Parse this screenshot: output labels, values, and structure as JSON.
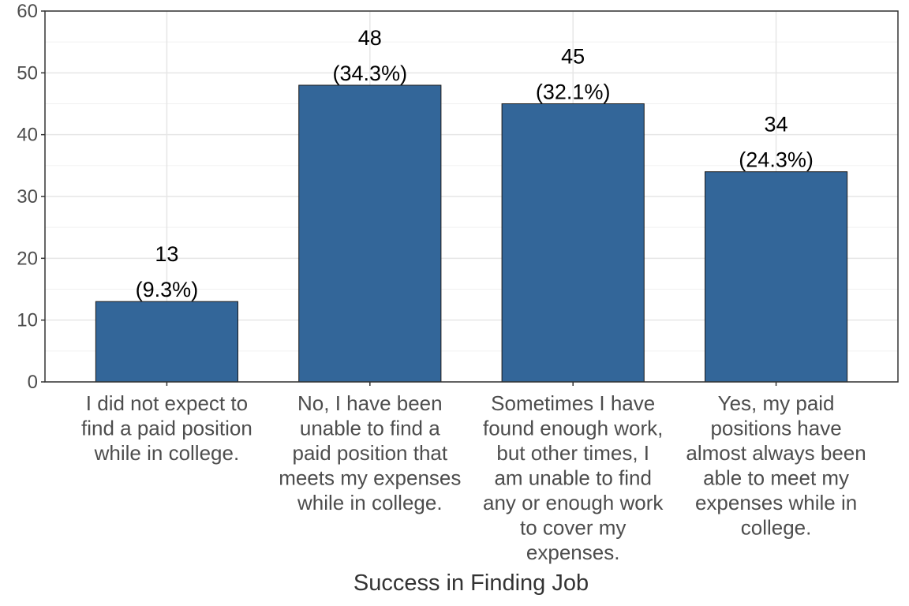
{
  "chart_data": {
    "type": "bar",
    "title": "",
    "xlabel": "Success in Finding Job",
    "ylabel": "",
    "ylim": [
      0,
      60
    ],
    "yticks": [
      0,
      10,
      20,
      30,
      40,
      50,
      60
    ],
    "grid": true,
    "bar_color": "#336699",
    "categories": [
      [
        "I did not expect to",
        "find a paid position",
        "while in college."
      ],
      [
        "No, I have been",
        "unable to find a",
        "paid position that",
        "meets my expenses",
        "while in college."
      ],
      [
        "Sometimes I have",
        "found enough work,",
        "but other times, I",
        "am unable to find",
        "any or enough work",
        "to cover my",
        "expenses."
      ],
      [
        "Yes, my paid",
        "positions have",
        "almost always been",
        "able to meet my",
        "expenses while in",
        "college."
      ]
    ],
    "values": [
      13,
      48,
      45,
      34
    ],
    "value_labels": [
      "13",
      "48",
      "45",
      "34"
    ],
    "percent_labels": [
      "(9.3%)",
      "(34.3%)",
      "(32.1%)",
      "(24.3%)"
    ]
  }
}
